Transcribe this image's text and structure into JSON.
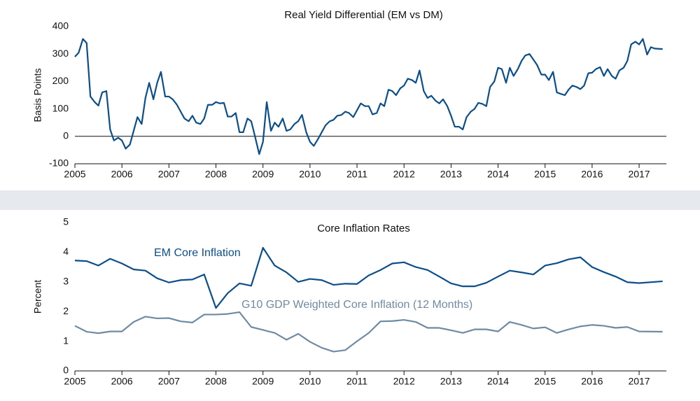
{
  "chart_data": [
    {
      "type": "line",
      "title": "Real Yield Differential (EM vs DM)",
      "y_label": "Basis Points",
      "color": "#0b4f8a",
      "zero_line": true,
      "xlim": [
        2005,
        2017.58
      ],
      "xticks": [
        2005,
        2006,
        2007,
        2008,
        2009,
        2010,
        2011,
        2012,
        2013,
        2014,
        2015,
        2016,
        2017
      ],
      "ylim": [
        -100,
        400
      ],
      "yticks": [
        -100,
        0,
        100,
        200,
        300,
        400
      ],
      "x": [
        2005,
        2005.08,
        2005.17,
        2005.25,
        2005.33,
        2005.42,
        2005.5,
        2005.58,
        2005.67,
        2005.75,
        2005.83,
        2005.92,
        2006,
        2006.08,
        2006.17,
        2006.25,
        2006.33,
        2006.42,
        2006.5,
        2006.58,
        2006.67,
        2006.75,
        2006.83,
        2006.92,
        2007,
        2007.08,
        2007.17,
        2007.25,
        2007.33,
        2007.42,
        2007.5,
        2007.58,
        2007.67,
        2007.75,
        2007.83,
        2007.92,
        2008,
        2008.08,
        2008.17,
        2008.25,
        2008.33,
        2008.42,
        2008.5,
        2008.58,
        2008.67,
        2008.75,
        2008.83,
        2008.92,
        2009,
        2009.08,
        2009.17,
        2009.25,
        2009.33,
        2009.42,
        2009.5,
        2009.58,
        2009.67,
        2009.75,
        2009.83,
        2009.92,
        2010,
        2010.08,
        2010.17,
        2010.25,
        2010.33,
        2010.42,
        2010.5,
        2010.58,
        2010.67,
        2010.75,
        2010.83,
        2010.92,
        2011,
        2011.08,
        2011.17,
        2011.25,
        2011.33,
        2011.42,
        2011.5,
        2011.58,
        2011.67,
        2011.75,
        2011.83,
        2011.92,
        2012,
        2012.08,
        2012.17,
        2012.25,
        2012.33,
        2012.42,
        2012.5,
        2012.58,
        2012.67,
        2012.75,
        2012.83,
        2012.92,
        2013,
        2013.08,
        2013.17,
        2013.25,
        2013.33,
        2013.42,
        2013.5,
        2013.58,
        2013.67,
        2013.75,
        2013.83,
        2013.92,
        2014,
        2014.08,
        2014.17,
        2014.25,
        2014.33,
        2014.42,
        2014.5,
        2014.58,
        2014.67,
        2014.75,
        2014.83,
        2014.92,
        2015,
        2015.08,
        2015.17,
        2015.25,
        2015.33,
        2015.42,
        2015.5,
        2015.58,
        2015.67,
        2015.75,
        2015.83,
        2015.92,
        2016,
        2016.08,
        2016.17,
        2016.25,
        2016.33,
        2016.42,
        2016.5,
        2016.58,
        2016.67,
        2016.75,
        2016.83,
        2016.92,
        2017,
        2017.08,
        2017.17,
        2017.25,
        2017.33,
        2017.5
      ],
      "values": [
        290,
        305,
        355,
        340,
        145,
        125,
        112,
        160,
        165,
        25,
        -15,
        -5,
        -15,
        -45,
        -30,
        20,
        70,
        45,
        140,
        195,
        135,
        195,
        235,
        145,
        145,
        135,
        115,
        90,
        65,
        55,
        75,
        50,
        45,
        65,
        115,
        115,
        125,
        120,
        122,
        72,
        72,
        85,
        15,
        15,
        65,
        55,
        0,
        -65,
        -20,
        125,
        20,
        50,
        35,
        65,
        20,
        25,
        45,
        55,
        78,
        15,
        -20,
        -35,
        -10,
        15,
        40,
        55,
        60,
        75,
        78,
        90,
        85,
        70,
        95,
        120,
        110,
        110,
        80,
        85,
        120,
        110,
        170,
        165,
        150,
        175,
        185,
        210,
        205,
        195,
        240,
        165,
        140,
        148,
        130,
        120,
        135,
        110,
        75,
        35,
        35,
        25,
        70,
        90,
        100,
        122,
        118,
        110,
        180,
        200,
        250,
        245,
        195,
        250,
        220,
        245,
        275,
        295,
        300,
        280,
        260,
        225,
        225,
        205,
        235,
        160,
        155,
        150,
        170,
        185,
        180,
        172,
        185,
        230,
        232,
        245,
        252,
        220,
        245,
        220,
        210,
        240,
        250,
        275,
        335,
        345,
        335,
        355,
        298,
        325,
        320,
        318
      ]
    },
    {
      "type": "line",
      "title": "Core Inflation Rates",
      "y_label": "Percent",
      "xlim": [
        2005,
        2017.58
      ],
      "xticks": [
        2005,
        2006,
        2007,
        2008,
        2009,
        2010,
        2011,
        2012,
        2013,
        2014,
        2015,
        2016,
        2017
      ],
      "ylim": [
        0,
        5
      ],
      "yticks": [
        0,
        1,
        2,
        3,
        4,
        5
      ],
      "x": [
        2005,
        2005.25,
        2005.5,
        2005.75,
        2006,
        2006.25,
        2006.5,
        2006.75,
        2007,
        2007.25,
        2007.5,
        2007.75,
        2008,
        2008.25,
        2008.5,
        2008.75,
        2009,
        2009.25,
        2009.5,
        2009.75,
        2010,
        2010.25,
        2010.5,
        2010.75,
        2011,
        2011.25,
        2011.5,
        2011.75,
        2012,
        2012.25,
        2012.5,
        2012.75,
        2013,
        2013.25,
        2013.5,
        2013.75,
        2014,
        2014.25,
        2014.5,
        2014.75,
        2015,
        2015.25,
        2015.5,
        2015.75,
        2016,
        2016.25,
        2016.5,
        2016.75,
        2017,
        2017.5
      ],
      "series": [
        {
          "name": "EM Core Inflation",
          "color": "#0b4f8a",
          "values": [
            3.72,
            3.7,
            3.55,
            3.78,
            3.62,
            3.42,
            3.38,
            3.12,
            2.98,
            3.06,
            3.08,
            3.25,
            2.12,
            2.62,
            2.95,
            2.87,
            4.15,
            3.55,
            3.32,
            3.0,
            3.1,
            3.06,
            2.9,
            2.94,
            2.93,
            3.22,
            3.4,
            3.62,
            3.66,
            3.5,
            3.4,
            3.18,
            2.95,
            2.85,
            2.85,
            2.97,
            3.18,
            3.38,
            3.32,
            3.25,
            3.55,
            3.63,
            3.76,
            3.83,
            3.5,
            3.33,
            3.18,
            2.99,
            2.96,
            3.02
          ]
        },
        {
          "name": "G10 GDP Weighted Core Inflation (12 Months)",
          "color": "#6f8ba3",
          "values": [
            1.52,
            1.32,
            1.27,
            1.33,
            1.33,
            1.65,
            1.83,
            1.77,
            1.78,
            1.67,
            1.63,
            1.9,
            1.9,
            1.92,
            1.98,
            1.48,
            1.38,
            1.28,
            1.05,
            1.25,
            0.98,
            0.78,
            0.65,
            0.7,
            1.0,
            1.28,
            1.67,
            1.68,
            1.72,
            1.65,
            1.45,
            1.45,
            1.37,
            1.28,
            1.4,
            1.4,
            1.33,
            1.65,
            1.55,
            1.43,
            1.47,
            1.28,
            1.4,
            1.5,
            1.55,
            1.52,
            1.45,
            1.48,
            1.33,
            1.32
          ]
        }
      ]
    }
  ]
}
